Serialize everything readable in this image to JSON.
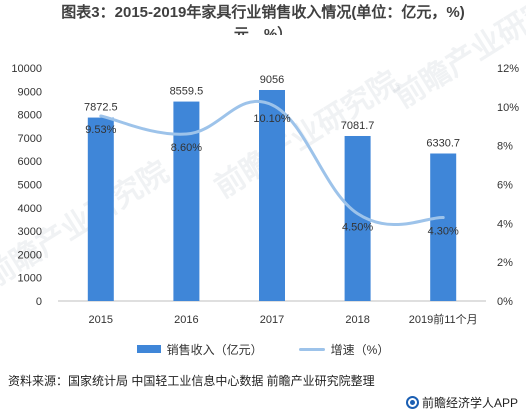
{
  "title_line1": "图表3：2015-2019年家具行业销售收入情况(单位：亿元，%)",
  "title_line2": "元，%）",
  "watermark_text": "前瞻产业研究院",
  "source_text": "资料来源：国家统计局 中国轻工业信息中心数据 前瞻产业研究院整理",
  "brand_text": "前瞻经济学人APP",
  "colors": {
    "bar": "#3f86d8",
    "line": "#9dc3ea"
  },
  "chart_data": {
    "type": "bar",
    "title": "图表3：2015-2019年家具行业销售收入情况(单位：亿元，%)",
    "categories": [
      "2015",
      "2016",
      "2017",
      "2018",
      "2019前11个月"
    ],
    "series": [
      {
        "name": "销售收入（亿元）",
        "type": "bar",
        "axis": "left",
        "values": [
          7872.5,
          8559.5,
          9056,
          7081.7,
          6330.7
        ],
        "labels": [
          "7872.5",
          "8559.5",
          "9056",
          "7081.7",
          "6330.7"
        ]
      },
      {
        "name": "增速（%）",
        "type": "line",
        "axis": "right",
        "smooth": true,
        "values": [
          9.53,
          8.6,
          10.1,
          4.5,
          4.3
        ],
        "labels": [
          "9.53%",
          "8.60%",
          "10.10%",
          "4.50%",
          "4.30%"
        ]
      }
    ],
    "y_left": {
      "min": 0,
      "max": 10000,
      "step": 1000,
      "ticks": [
        "0",
        "1000",
        "2000",
        "3000",
        "4000",
        "5000",
        "6000",
        "7000",
        "8000",
        "9000",
        "10000"
      ]
    },
    "y_right": {
      "min": 0,
      "max": 12,
      "step": 2,
      "ticks": [
        "0%",
        "2%",
        "4%",
        "6%",
        "8%",
        "10%",
        "12%"
      ]
    },
    "grid": false,
    "legend_position": "bottom"
  }
}
